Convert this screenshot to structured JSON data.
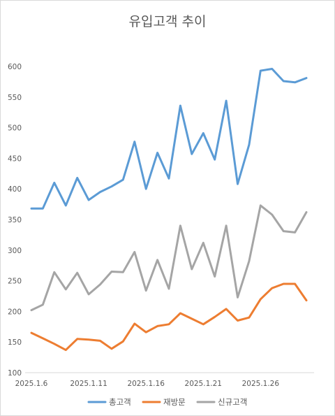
{
  "chart_data": {
    "type": "line",
    "title": "유입고객 추이",
    "xlabel": "",
    "ylabel": "",
    "x_tick_labels": [
      "2025.1.6",
      "2025.1.11",
      "2025.1.16",
      "2025.1.21",
      "2025.1.26"
    ],
    "y_tick_labels": [
      "100",
      "150",
      "200",
      "250",
      "300",
      "350",
      "400",
      "450",
      "500",
      "550",
      "600"
    ],
    "ylim": [
      100,
      600
    ],
    "grid": false,
    "legend_position": "bottom",
    "series": [
      {
        "name": "총고객",
        "color": "#5B9BD5",
        "values": [
          368,
          368,
          410,
          373,
          418,
          382,
          395,
          404,
          415,
          477,
          400,
          459,
          417,
          536,
          457,
          491,
          448,
          544,
          408,
          472,
          593,
          596,
          576,
          574,
          581
        ]
      },
      {
        "name": "재방문",
        "color": "#ED7D31",
        "values": [
          165,
          156,
          147,
          137,
          155,
          154,
          152,
          139,
          151,
          180,
          166,
          176,
          179,
          197,
          188,
          179,
          191,
          204,
          185,
          190,
          220,
          238,
          245,
          245,
          218
        ]
      },
      {
        "name": "신규고객",
        "color": "#A5A5A5",
        "values": [
          202,
          211,
          264,
          236,
          263,
          228,
          244,
          265,
          264,
          297,
          234,
          284,
          237,
          340,
          269,
          312,
          257,
          340,
          223,
          282,
          373,
          358,
          331,
          329,
          362
        ]
      }
    ]
  }
}
